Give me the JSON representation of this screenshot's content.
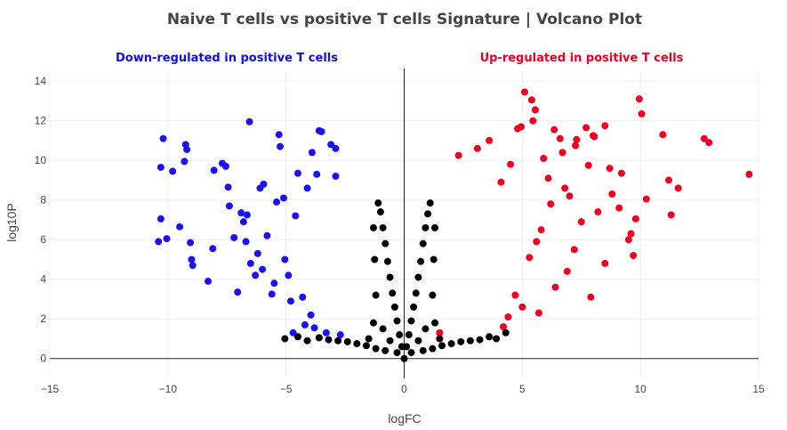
{
  "chart_data": {
    "type": "scatter",
    "title": "Naive T cells vs positive T cells Signature | Volcano Plot",
    "xlabel": "logFC",
    "ylabel": "log10P",
    "xlim": [
      -15,
      15
    ],
    "ylim": [
      -1,
      14.5
    ],
    "x_ticks": [
      -15,
      -10,
      -5,
      0,
      5,
      10,
      15
    ],
    "y_ticks": [
      0,
      2,
      4,
      6,
      8,
      10,
      12,
      14
    ],
    "grid": true,
    "legend": "none",
    "annotations": [
      {
        "text": "Down-regulated in positive T cells",
        "color": "#0d0df0"
      },
      {
        "text": "Up-regulated in positive T cells",
        "color": "#f00020"
      }
    ],
    "series": [
      {
        "color": "#1a10f5",
        "points": [
          [
            -10.4,
            5.9
          ],
          [
            -10.3,
            7.05
          ],
          [
            -10.2,
            11.1
          ],
          [
            -10.3,
            9.65
          ],
          [
            -10.05,
            6.05
          ],
          [
            -9.8,
            9.45
          ],
          [
            -9.5,
            6.65
          ],
          [
            -9.25,
            10.8
          ],
          [
            -9.2,
            10.55
          ],
          [
            -9.3,
            9.95
          ],
          [
            -9.05,
            5.85
          ],
          [
            -9.0,
            5.0
          ],
          [
            -8.95,
            4.7
          ],
          [
            -8.3,
            3.9
          ],
          [
            -8.05,
            9.5
          ],
          [
            -8.1,
            5.55
          ],
          [
            -7.7,
            9.85
          ],
          [
            -7.55,
            9.7
          ],
          [
            -7.45,
            8.65
          ],
          [
            -7.4,
            7.7
          ],
          [
            -7.05,
            3.35
          ],
          [
            -6.9,
            7.35
          ],
          [
            -6.8,
            6.9
          ],
          [
            -6.65,
            7.25
          ],
          [
            -6.55,
            11.95
          ],
          [
            -6.5,
            4.8
          ],
          [
            -6.3,
            4.2
          ],
          [
            -6.1,
            8.6
          ],
          [
            -5.95,
            8.8
          ],
          [
            -5.6,
            3.25
          ],
          [
            -5.3,
            11.3
          ],
          [
            -5.25,
            10.7
          ],
          [
            -5.05,
            5.0
          ],
          [
            -4.8,
            2.9
          ],
          [
            -4.7,
            1.3
          ],
          [
            -4.5,
            9.35
          ],
          [
            -3.6,
            11.5
          ],
          [
            -3.5,
            11.45
          ],
          [
            -3.9,
            10.4
          ],
          [
            -3.1,
            10.8
          ],
          [
            -2.9,
            10.6
          ],
          [
            -3.3,
            1.3
          ],
          [
            -3.8,
            1.55
          ],
          [
            -4.2,
            1.7
          ],
          [
            -6.2,
            5.3
          ],
          [
            -5.8,
            6.2
          ],
          [
            -5.4,
            7.9
          ],
          [
            -4.6,
            7.2
          ],
          [
            -4.1,
            8.6
          ],
          [
            -3.7,
            9.3
          ],
          [
            -4.9,
            4.2
          ],
          [
            -4.3,
            3.1
          ],
          [
            -3.95,
            2.2
          ],
          [
            -2.7,
            1.2
          ],
          [
            -2.9,
            9.2
          ],
          [
            -7.2,
            6.1
          ],
          [
            -6.7,
            5.9
          ],
          [
            -6.0,
            4.5
          ],
          [
            -5.5,
            3.8
          ],
          [
            -5.1,
            8.1
          ]
        ]
      },
      {
        "color": "#f00020",
        "points": [
          [
            5.1,
            13.45
          ],
          [
            5.4,
            13.05
          ],
          [
            5.55,
            12.55
          ],
          [
            5.45,
            12.0
          ],
          [
            4.95,
            11.7
          ],
          [
            4.8,
            11.6
          ],
          [
            6.35,
            11.55
          ],
          [
            6.6,
            11.1
          ],
          [
            7.3,
            11.05
          ],
          [
            7.25,
            10.75
          ],
          [
            7.7,
            11.65
          ],
          [
            8.0,
            11.25
          ],
          [
            8.05,
            11.2
          ],
          [
            8.5,
            11.75
          ],
          [
            9.95,
            13.1
          ],
          [
            10.05,
            12.35
          ],
          [
            10.95,
            11.3
          ],
          [
            12.7,
            11.1
          ],
          [
            12.9,
            10.9
          ],
          [
            14.6,
            9.3
          ],
          [
            11.2,
            9.0
          ],
          [
            11.6,
            8.6
          ],
          [
            10.25,
            8.05
          ],
          [
            9.8,
            7.05
          ],
          [
            11.3,
            7.25
          ],
          [
            9.6,
            6.3
          ],
          [
            9.7,
            5.2
          ],
          [
            9.5,
            6.0
          ],
          [
            8.5,
            4.8
          ],
          [
            7.9,
            3.1
          ],
          [
            7.8,
            9.75
          ],
          [
            8.7,
            9.6
          ],
          [
            9.2,
            9.35
          ],
          [
            6.8,
            8.6
          ],
          [
            6.2,
            7.8
          ],
          [
            5.8,
            6.5
          ],
          [
            5.3,
            5.1
          ],
          [
            5.7,
            2.3
          ],
          [
            5.0,
            2.6
          ],
          [
            4.7,
            3.2
          ],
          [
            4.4,
            2.1
          ],
          [
            4.2,
            1.6
          ],
          [
            3.1,
            10.6
          ],
          [
            3.6,
            11.0
          ],
          [
            2.3,
            10.25
          ],
          [
            1.5,
            1.3
          ],
          [
            7.2,
            5.5
          ],
          [
            8.2,
            7.4
          ],
          [
            6.9,
            4.4
          ],
          [
            6.4,
            3.6
          ],
          [
            7.5,
            6.9
          ],
          [
            8.8,
            8.3
          ],
          [
            9.1,
            7.6
          ],
          [
            6.1,
            9.1
          ],
          [
            5.9,
            10.1
          ],
          [
            4.5,
            9.8
          ],
          [
            4.1,
            8.9
          ],
          [
            6.7,
            10.4
          ],
          [
            7.0,
            8.2
          ],
          [
            5.6,
            5.9
          ]
        ]
      },
      {
        "color": "#000000",
        "points": [
          [
            -1.1,
            7.85
          ],
          [
            -1.0,
            7.4
          ],
          [
            -0.9,
            6.6
          ],
          [
            -0.8,
            5.8
          ],
          [
            -0.7,
            4.9
          ],
          [
            -0.6,
            4.1
          ],
          [
            -0.5,
            3.3
          ],
          [
            -0.4,
            2.6
          ],
          [
            -0.3,
            1.9
          ],
          [
            -0.2,
            1.2
          ],
          [
            -0.1,
            0.6
          ],
          [
            0.0,
            0.0
          ],
          [
            0.1,
            0.6
          ],
          [
            0.2,
            1.2
          ],
          [
            0.3,
            1.9
          ],
          [
            0.4,
            2.6
          ],
          [
            0.5,
            3.3
          ],
          [
            0.6,
            4.1
          ],
          [
            0.7,
            4.9
          ],
          [
            0.8,
            5.8
          ],
          [
            0.9,
            6.6
          ],
          [
            1.0,
            7.3
          ],
          [
            1.1,
            7.85
          ],
          [
            -3.2,
            0.95
          ],
          [
            -2.8,
            0.9
          ],
          [
            -2.4,
            0.85
          ],
          [
            -2.0,
            0.75
          ],
          [
            -1.6,
            0.65
          ],
          [
            -1.2,
            0.5
          ],
          [
            -0.8,
            0.4
          ],
          [
            0.8,
            0.4
          ],
          [
            1.2,
            0.5
          ],
          [
            1.6,
            0.65
          ],
          [
            2.0,
            0.75
          ],
          [
            2.4,
            0.85
          ],
          [
            2.8,
            0.9
          ],
          [
            3.2,
            0.95
          ],
          [
            3.6,
            1.1
          ],
          [
            3.9,
            1.0
          ],
          [
            4.3,
            1.3
          ],
          [
            -3.6,
            1.05
          ],
          [
            -4.1,
            0.9
          ],
          [
            -4.5,
            1.1
          ],
          [
            -5.05,
            1.0
          ],
          [
            -1.3,
            1.8
          ],
          [
            1.3,
            1.8
          ],
          [
            -1.2,
            3.2
          ],
          [
            1.2,
            3.2
          ],
          [
            -1.25,
            5.0
          ],
          [
            1.25,
            5.0
          ],
          [
            -1.3,
            6.6
          ],
          [
            1.3,
            6.6
          ],
          [
            -1.5,
            1.0
          ],
          [
            1.5,
            1.0
          ],
          [
            -0.9,
            1.5
          ],
          [
            0.9,
            1.5
          ],
          [
            -0.6,
            0.9
          ],
          [
            0.6,
            0.9
          ],
          [
            -0.3,
            0.3
          ],
          [
            0.3,
            0.3
          ]
        ]
      }
    ]
  }
}
